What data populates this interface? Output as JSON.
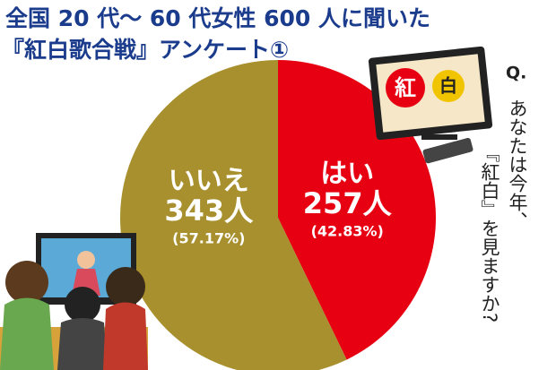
{
  "chart_data": {
    "type": "pie",
    "title": "全国 20 代〜 60 代女性 600 人に聞いた",
    "subtitle": "『紅白歌合戦』アンケート①",
    "question_label": "Q.",
    "question_lines": [
      "あなたは今年、",
      "『紅白』を見ますか?"
    ],
    "tv_text": [
      "紅",
      "白"
    ],
    "categories": [
      "はい",
      "いいえ"
    ],
    "values": [
      257,
      343
    ],
    "value_labels": [
      "257人",
      "343人"
    ],
    "percentages": [
      42.83,
      57.17
    ],
    "percentage_labels": [
      "(42.83%)",
      "(57.17%)"
    ],
    "colors": [
      "#e60012",
      "#a8902e"
    ]
  }
}
